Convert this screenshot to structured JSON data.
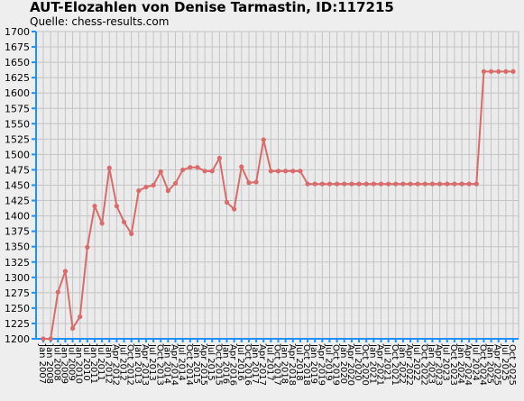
{
  "chart_data": {
    "type": "line",
    "title": "AUT-Elozahlen von Denise Tarmastin, ID:117215",
    "subtitle": "Quelle: chess-results.com",
    "categories": [
      "Jan 2007",
      "Jan 2008",
      "Jul 2008",
      "Jan 2009",
      "Jul 2009",
      "Jan 2010",
      "Jul 2010",
      "Jan 2011",
      "Jul 2011",
      "Jan 2012",
      "Apr 2012",
      "Jul 2012",
      "Oct 2012",
      "Jan 2013",
      "Apr 2013",
      "Jul 2013",
      "Oct 2013",
      "Jan 2014",
      "Apr 2014",
      "Jul 2014",
      "Oct 2014",
      "Jan 2015",
      "Apr 2015",
      "Jul 2015",
      "Oct 2015",
      "Jan 2016",
      "Apr 2016",
      "Jul 2016",
      "Oct 2016",
      "Jan 2017",
      "Apr 2017",
      "Jul 2017",
      "Oct 2017",
      "Jan 2018",
      "Apr 2018",
      "Jul 2018",
      "Oct 2018",
      "Jan 2019",
      "Apr 2019",
      "Jul 2019",
      "Oct 2019",
      "Jan 2020",
      "Apr 2020",
      "Jul 2020",
      "Oct 2020",
      "Jan 2021",
      "Apr 2021",
      "Jul 2021",
      "Oct 2021",
      "Jan 2022",
      "Apr 2022",
      "Jul 2022",
      "Oct 2022",
      "Jan 2023",
      "Apr 2023",
      "Jul 2023",
      "Oct 2023",
      "Jan 2024",
      "Apr 2024",
      "Jul 2024",
      "Oct 2024",
      "Jan 2025",
      "Apr 2025",
      "Jul 2025",
      "Oct 2025"
    ],
    "values": [
      1200,
      1200,
      1276,
      1310,
      1217,
      1236,
      1349,
      1416,
      1388,
      1478,
      1416,
      1390,
      1371,
      1441,
      1447,
      1450,
      1472,
      1441,
      1453,
      1475,
      1479,
      1479,
      1473,
      1473,
      1494,
      1422,
      1411,
      1480,
      1454,
      1455,
      1524,
      1473,
      1473,
      1473,
      1473,
      1473,
      1452,
      1452,
      1452,
      1452,
      1452,
      1452,
      1452,
      1452,
      1452,
      1452,
      1452,
      1452,
      1452,
      1452,
      1452,
      1452,
      1452,
      1452,
      1452,
      1452,
      1452,
      1452,
      1452,
      1452,
      1635,
      1635,
      1635,
      1635,
      1635
    ],
    "color": "#d96b6b",
    "ylim": [
      1200,
      1700
    ],
    "yticks": [
      1200,
      1225,
      1250,
      1275,
      1300,
      1325,
      1350,
      1375,
      1400,
      1425,
      1450,
      1475,
      1500,
      1525,
      1550,
      1575,
      1600,
      1625,
      1650,
      1675,
      1700
    ],
    "grid": true
  }
}
